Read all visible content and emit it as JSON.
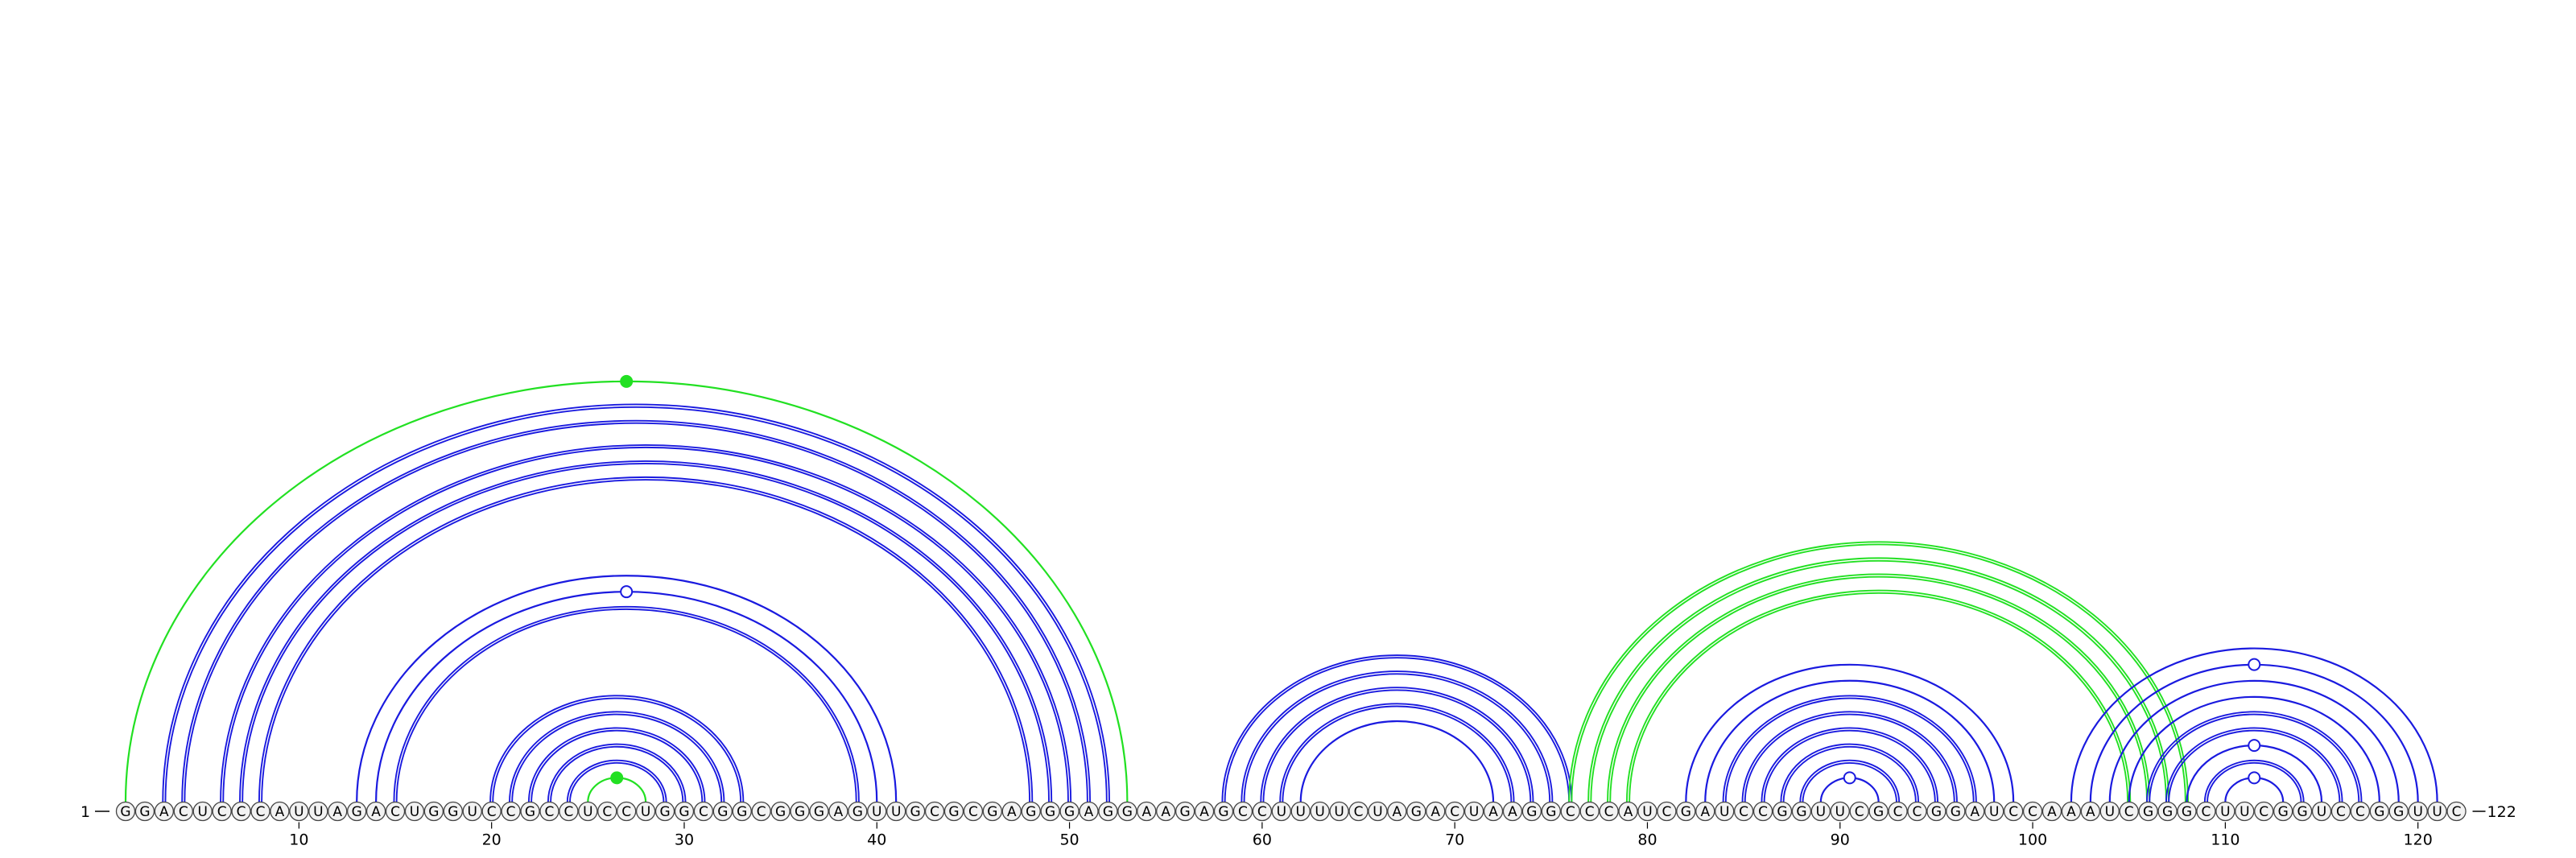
{
  "sequence": {
    "start_label": "1",
    "end_label": "122",
    "nucleotides": "GGACUCCCAUUAGACUGGUCCGCCUCCUGGCGGCGGGAGUUGCGCGAGGGAGGAAGAGCCUUUUCUAGACUAAGGCCCAUCGAUCCGGUUCGCCGGAUCCAAAUCGGGCUUCGGUCCGGUUC",
    "ticks": [
      10,
      20,
      30,
      40,
      50,
      60,
      70,
      80,
      90,
      100,
      110,
      120
    ]
  },
  "colors": {
    "pair": "#1a1adf",
    "highlight": "#22e022",
    "base_fill": "#f2f2f2",
    "base_stroke": "#444444"
  },
  "arcs": [
    {
      "i": 3,
      "j": 52,
      "style": "double"
    },
    {
      "i": 4,
      "j": 51,
      "style": "double"
    },
    {
      "i": 6,
      "j": 50,
      "style": "double"
    },
    {
      "i": 7,
      "j": 49,
      "style": "double"
    },
    {
      "i": 8,
      "j": 48,
      "style": "double"
    },
    {
      "i": 1,
      "j": 53,
      "style": "highlight",
      "marker": "filled"
    },
    {
      "i": 13,
      "j": 41,
      "style": "single"
    },
    {
      "i": 14,
      "j": 40,
      "style": "single",
      "marker": "open"
    },
    {
      "i": 15,
      "j": 39,
      "style": "double"
    },
    {
      "i": 20,
      "j": 33,
      "style": "double"
    },
    {
      "i": 21,
      "j": 32,
      "style": "double"
    },
    {
      "i": 22,
      "j": 31,
      "style": "double"
    },
    {
      "i": 23,
      "j": 30,
      "style": "double"
    },
    {
      "i": 24,
      "j": 29,
      "style": "double"
    },
    {
      "i": 25,
      "j": 28,
      "style": "highlight",
      "marker": "filled"
    },
    {
      "i": 58,
      "j": 76,
      "style": "double"
    },
    {
      "i": 59,
      "j": 75,
      "style": "double"
    },
    {
      "i": 60,
      "j": 74,
      "style": "double"
    },
    {
      "i": 61,
      "j": 73,
      "style": "double"
    },
    {
      "i": 62,
      "j": 72,
      "style": "single"
    },
    {
      "i": 76,
      "j": 108,
      "style": "highlight-double"
    },
    {
      "i": 77,
      "j": 107,
      "style": "highlight-double"
    },
    {
      "i": 78,
      "j": 106,
      "style": "highlight-double"
    },
    {
      "i": 79,
      "j": 105,
      "style": "highlight-double"
    },
    {
      "i": 82,
      "j": 99,
      "style": "single"
    },
    {
      "i": 83,
      "j": 98,
      "style": "single"
    },
    {
      "i": 84,
      "j": 97,
      "style": "double"
    },
    {
      "i": 85,
      "j": 96,
      "style": "double"
    },
    {
      "i": 86,
      "j": 95,
      "style": "double"
    },
    {
      "i": 87,
      "j": 94,
      "style": "double"
    },
    {
      "i": 88,
      "j": 93,
      "style": "double"
    },
    {
      "i": 89,
      "j": 92,
      "style": "single",
      "marker": "open"
    },
    {
      "i": 102,
      "j": 121,
      "style": "single"
    },
    {
      "i": 103,
      "j": 120,
      "style": "single",
      "marker": "open"
    },
    {
      "i": 104,
      "j": 119,
      "style": "single"
    },
    {
      "i": 105,
      "j": 118,
      "style": "single"
    },
    {
      "i": 106,
      "j": 117,
      "style": "double"
    },
    {
      "i": 107,
      "j": 116,
      "style": "double"
    },
    {
      "i": 108,
      "j": 115,
      "style": "single",
      "marker": "open"
    },
    {
      "i": 109,
      "j": 114,
      "style": "double"
    },
    {
      "i": 110,
      "j": 113,
      "style": "single",
      "marker": "open"
    }
  ]
}
